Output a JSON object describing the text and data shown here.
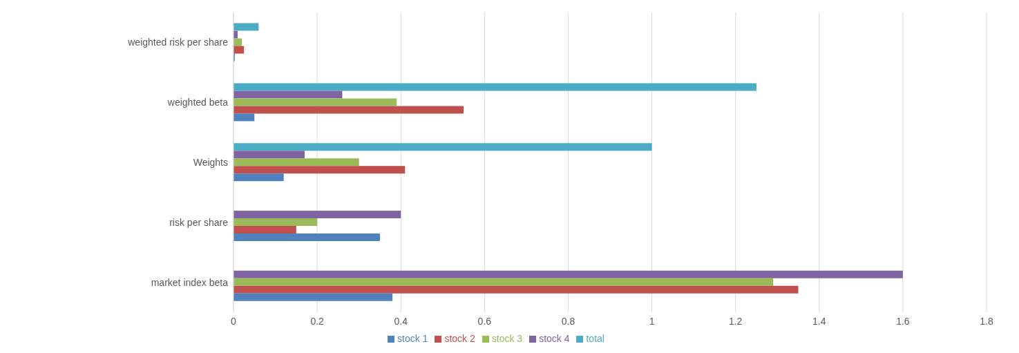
{
  "chart_data": {
    "type": "bar",
    "orientation": "horizontal",
    "categories": [
      "weighted risk per share",
      "weighted beta",
      "Weights",
      "risk per share",
      "market index beta"
    ],
    "series": [
      {
        "name": "total",
        "color": "#4bacc6",
        "values": [
          0.06,
          1.25,
          1,
          null,
          null
        ]
      },
      {
        "name": "stock 4",
        "color": "#8064a2",
        "values": [
          0.01,
          0.26,
          0.17,
          0.4,
          1.6
        ]
      },
      {
        "name": "stock 3",
        "color": "#9bbb59",
        "values": [
          0.02,
          0.39,
          0.3,
          0.2,
          1.29
        ]
      },
      {
        "name": "stock 2",
        "color": "#c0504d",
        "values": [
          0.025,
          0.55,
          0.41,
          0.15,
          1.35
        ]
      },
      {
        "name": "stock 1",
        "color": "#4f81bd",
        "values": [
          0.003,
          0.05,
          0.12,
          0.35,
          0.38
        ]
      }
    ],
    "xlim": [
      0,
      1.8
    ],
    "xticks": [
      0,
      0.2,
      0.4,
      0.6,
      0.8,
      1,
      1.2,
      1.4,
      1.6,
      1.8
    ],
    "grid": "x",
    "legend": "bottom"
  }
}
